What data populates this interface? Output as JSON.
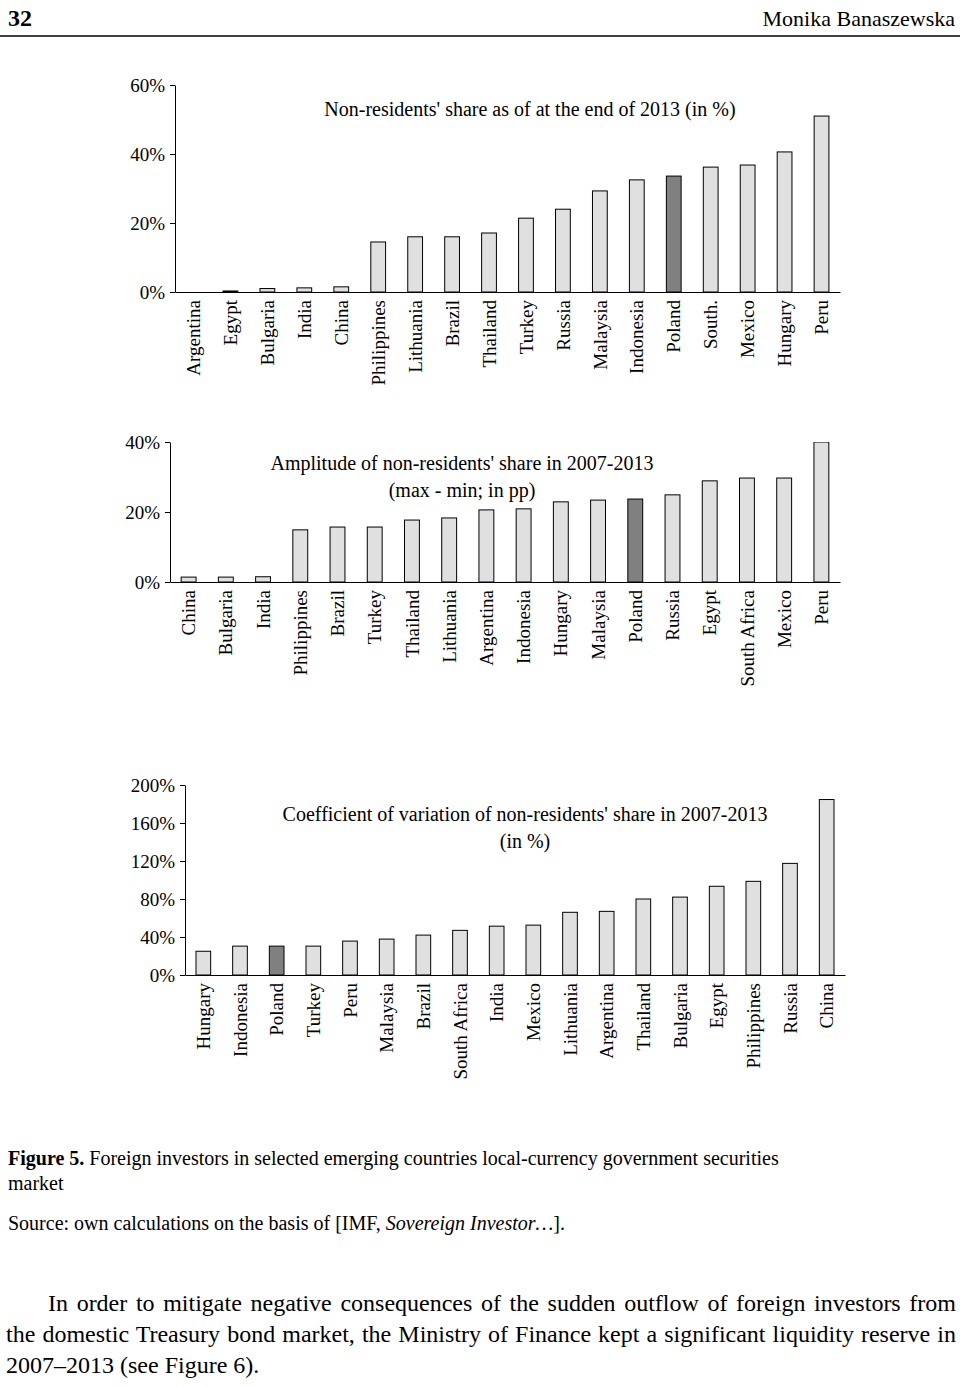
{
  "header": {
    "page": "32",
    "author": "Monika Banaszewska"
  },
  "chart_data": [
    {
      "type": "bar",
      "title": "Non-residents' share as of at the end of 2013 (in %)",
      "categories": [
        "Argentina",
        "Egypt",
        "Bulgaria",
        "India",
        "China",
        "Philippines",
        "Lithuania",
        "Brazil",
        "Thailand",
        "Turkey",
        "Russia",
        "Malaysia",
        "Indonesia",
        "Poland",
        "South.",
        "Mexico",
        "Hungary",
        "Peru"
      ],
      "values": [
        0,
        0.3,
        1,
        1.2,
        1.5,
        14.5,
        16,
        16,
        17.1,
        21.4,
        24,
        29.3,
        32.5,
        33.6,
        36.2,
        36.8,
        40.6,
        51
      ],
      "colors": [
        "#e0e0e0",
        "#e0e0e0",
        "#e0e0e0",
        "#e0e0e0",
        "#e0e0e0",
        "#e0e0e0",
        "#e0e0e0",
        "#e0e0e0",
        "#e0e0e0",
        "#e0e0e0",
        "#e0e0e0",
        "#e0e0e0",
        "#e0e0e0",
        "#808080",
        "#e0e0e0",
        "#e0e0e0",
        "#e0e0e0",
        "#e0e0e0"
      ],
      "ylim": [
        0,
        60
      ],
      "yticks": [
        {
          "value": 0,
          "label": "0%"
        },
        {
          "value": 20,
          "label": "20%"
        },
        {
          "value": 40,
          "label": "40%"
        },
        {
          "value": 60,
          "label": "60%"
        }
      ]
    },
    {
      "type": "bar",
      "title": "Amplitude of non-residents' share in 2007-2013\n(max - min; in pp)",
      "categories": [
        "China",
        "Bulgaria",
        "India",
        "Philippines",
        "Brazil",
        "Turkey",
        "Thailand",
        "Lithuania",
        "Argentina",
        "Indonesia",
        "Hungary",
        "Malaysia",
        "Poland",
        "Russia",
        "Egypt",
        "South Africa",
        "Mexico",
        "Peru"
      ],
      "values": [
        1.4,
        1.4,
        1.5,
        14.9,
        15.7,
        15.7,
        17.7,
        18.3,
        20.6,
        20.9,
        22.9,
        23.4,
        23.7,
        24.9,
        28.9,
        29.7,
        29.7,
        40
      ],
      "colors": [
        "#e0e0e0",
        "#e0e0e0",
        "#e0e0e0",
        "#e0e0e0",
        "#e0e0e0",
        "#e0e0e0",
        "#e0e0e0",
        "#e0e0e0",
        "#e0e0e0",
        "#e0e0e0",
        "#e0e0e0",
        "#e0e0e0",
        "#808080",
        "#e0e0e0",
        "#e0e0e0",
        "#e0e0e0",
        "#e0e0e0",
        "#e0e0e0"
      ],
      "ylim": [
        0,
        40
      ],
      "yticks": [
        {
          "value": 0,
          "label": "0%"
        },
        {
          "value": 20,
          "label": "20%"
        },
        {
          "value": 40,
          "label": "40%"
        }
      ]
    },
    {
      "type": "bar",
      "title": "Coefficient of variation of non-residents' share in 2007-2013\n(in %)",
      "categories": [
        "Hungary",
        "Indonesia",
        "Poland",
        "Turkey",
        "Peru",
        "Malaysia",
        "Brazil",
        "South Africa",
        "India",
        "Mexico",
        "Lithuania",
        "Argentina",
        "Thailand",
        "Bulgaria",
        "Egypt",
        "Philippines",
        "Russia",
        "China"
      ],
      "values": [
        25,
        30.4,
        30.4,
        30.4,
        35.7,
        37.8,
        42,
        47,
        51.4,
        52.5,
        66,
        67,
        80,
        82,
        93.4,
        98.6,
        117.5,
        184.7
      ],
      "colors": [
        "#e0e0e0",
        "#e0e0e0",
        "#808080",
        "#e0e0e0",
        "#e0e0e0",
        "#e0e0e0",
        "#e0e0e0",
        "#e0e0e0",
        "#e0e0e0",
        "#e0e0e0",
        "#e0e0e0",
        "#e0e0e0",
        "#e0e0e0",
        "#e0e0e0",
        "#e0e0e0",
        "#e0e0e0",
        "#e0e0e0",
        "#e0e0e0"
      ],
      "ylim": [
        0,
        200
      ],
      "yticks": [
        {
          "value": 0,
          "label": "0%"
        },
        {
          "value": 40,
          "label": "40%"
        },
        {
          "value": 80,
          "label": "80%"
        },
        {
          "value": 120,
          "label": "120%"
        },
        {
          "value": 160,
          "label": "160%"
        },
        {
          "value": 200,
          "label": "200%"
        }
      ]
    }
  ],
  "caption": {
    "label": "Figure 5.",
    "text": "Foreign investors in selected emerging countries local-currency government securities market"
  },
  "source": {
    "prefix": "Source: own calculations on the basis of [IMF, ",
    "italic": "Sovereign Investor…",
    "suffix": "]."
  },
  "body": "In order to mitigate negative consequences of the sudden outflow of foreign investors from the domestic Treasury bond market, the Ministry of Finance kept a significant liquidity reserve in 2007–2013 (see Figure 6)."
}
